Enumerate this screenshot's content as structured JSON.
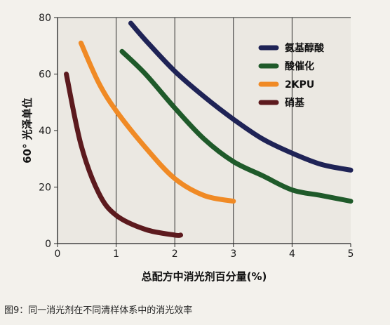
{
  "caption": "图9：同一消光剂在不同清样体系中的消光效率",
  "chart_data": {
    "type": "line",
    "xlabel": "总配方中消光剂百分量(%)",
    "ylabel": "60° 光泽单位",
    "xlim": [
      0,
      5
    ],
    "ylim": [
      0,
      80
    ],
    "xticks": [
      0,
      1,
      2,
      3,
      4,
      5
    ],
    "yticks": [
      0,
      20,
      40,
      60,
      80
    ],
    "grid": "vertical-only",
    "legend_position": "top-right",
    "series": [
      {
        "name": "氨基醇酸",
        "color": "#1f2356",
        "x": [
          1.25,
          1.5,
          2.0,
          2.5,
          3.0,
          3.5,
          4.0,
          4.5,
          5.0
        ],
        "y": [
          78,
          72,
          61,
          52,
          44,
          37,
          32,
          28,
          26
        ]
      },
      {
        "name": "酸催化",
        "color": "#1f5a2a",
        "x": [
          1.1,
          1.5,
          2.0,
          2.5,
          3.0,
          3.5,
          4.0,
          4.5,
          5.0
        ],
        "y": [
          68,
          60,
          48,
          37,
          29,
          24,
          19,
          17,
          15
        ]
      },
      {
        "name": "2KPU",
        "color": "#f08a25",
        "x": [
          0.4,
          0.7,
          1.0,
          1.5,
          2.0,
          2.5,
          3.0
        ],
        "y": [
          71,
          57,
          47,
          34,
          23,
          17,
          15
        ]
      },
      {
        "name": "硝基",
        "color": "#5c1a1e",
        "x": [
          0.15,
          0.4,
          0.7,
          1.0,
          1.5,
          2.0,
          2.1
        ],
        "y": [
          60,
          35,
          18,
          10,
          5,
          3,
          3
        ]
      }
    ]
  }
}
